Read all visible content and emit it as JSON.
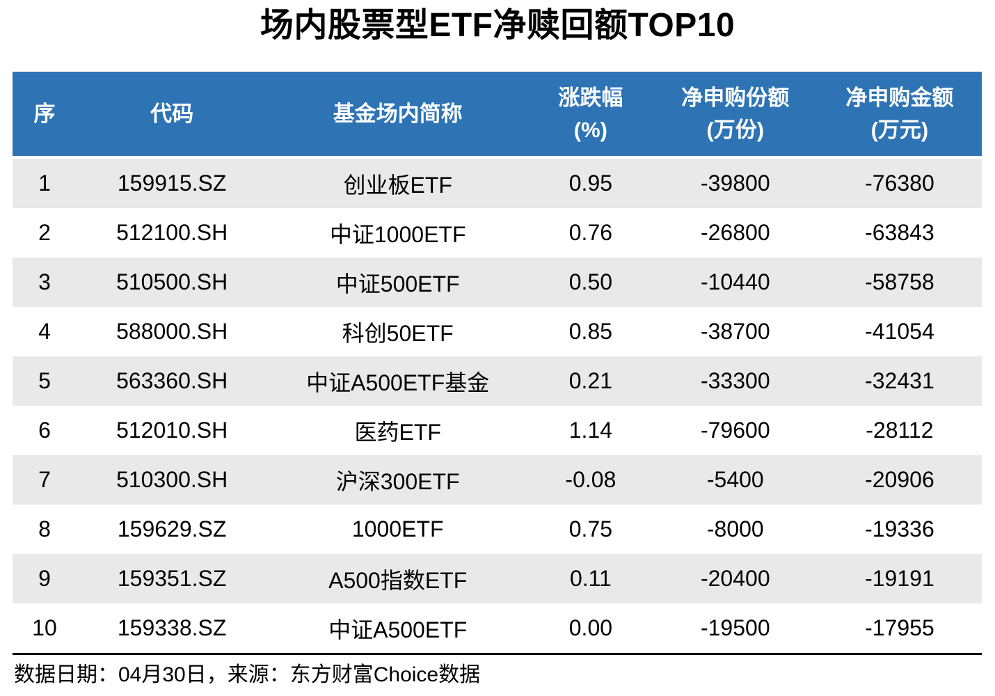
{
  "title": "场内股票型ETF净赎回额TOP10",
  "colors": {
    "header_bg": "#2E74B5",
    "header_text": "#FFFFFF",
    "zebra_row_bg": "#E9E9E9",
    "row_bg": "#FFFFFF",
    "body_text": "#000000",
    "bottom_rule": "#000000"
  },
  "chart_data": {
    "type": "table",
    "title": "场内股票型ETF净赎回额TOP10",
    "columns": [
      {
        "label": "序",
        "unit": ""
      },
      {
        "label": "代码",
        "unit": ""
      },
      {
        "label": "基金场内简称",
        "unit": ""
      },
      {
        "label": "涨跌幅",
        "unit": "(%)"
      },
      {
        "label": "净申购份额",
        "unit": "(万份)"
      },
      {
        "label": "净申购金额",
        "unit": "(万元)"
      }
    ],
    "rows": [
      {
        "rank": "1",
        "code": "159915.SZ",
        "name": "创业板ETF",
        "change_pct": "0.95",
        "net_shares_wan": "-39800",
        "net_amount_wan": "-76380"
      },
      {
        "rank": "2",
        "code": "512100.SH",
        "name": "中证1000ETF",
        "change_pct": "0.76",
        "net_shares_wan": "-26800",
        "net_amount_wan": "-63843"
      },
      {
        "rank": "3",
        "code": "510500.SH",
        "name": "中证500ETF",
        "change_pct": "0.50",
        "net_shares_wan": "-10440",
        "net_amount_wan": "-58758"
      },
      {
        "rank": "4",
        "code": "588000.SH",
        "name": "科创50ETF",
        "change_pct": "0.85",
        "net_shares_wan": "-38700",
        "net_amount_wan": "-41054"
      },
      {
        "rank": "5",
        "code": "563360.SH",
        "name": "中证A500ETF基金",
        "change_pct": "0.21",
        "net_shares_wan": "-33300",
        "net_amount_wan": "-32431"
      },
      {
        "rank": "6",
        "code": "512010.SH",
        "name": "医药ETF",
        "change_pct": "1.14",
        "net_shares_wan": "-79600",
        "net_amount_wan": "-28112"
      },
      {
        "rank": "7",
        "code": "510300.SH",
        "name": "沪深300ETF",
        "change_pct": "-0.08",
        "net_shares_wan": "-5400",
        "net_amount_wan": "-20906"
      },
      {
        "rank": "8",
        "code": "159629.SZ",
        "name": "1000ETF",
        "change_pct": "0.75",
        "net_shares_wan": "-8000",
        "net_amount_wan": "-19336"
      },
      {
        "rank": "9",
        "code": "159351.SZ",
        "name": "A500指数ETF",
        "change_pct": "0.11",
        "net_shares_wan": "-20400",
        "net_amount_wan": "-19191"
      },
      {
        "rank": "10",
        "code": "159338.SZ",
        "name": "中证A500ETF",
        "change_pct": "0.00",
        "net_shares_wan": "-19500",
        "net_amount_wan": "-17955"
      }
    ]
  },
  "footer": {
    "note": "数据日期：04月30日，来源：东方财富Choice数据"
  }
}
